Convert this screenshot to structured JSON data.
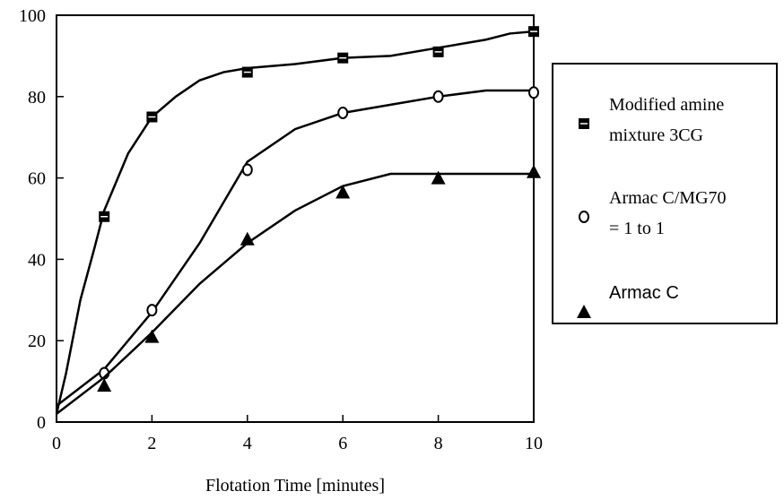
{
  "chart_data": {
    "type": "line",
    "x_label": "Flotation Time [minutes]",
    "xlim": [
      0,
      10
    ],
    "xticks": [
      0,
      2,
      4,
      6,
      8,
      10
    ],
    "ylim": [
      0,
      100
    ],
    "yticks": [
      0,
      20,
      40,
      60,
      80,
      100
    ],
    "series": [
      {
        "name": "Modified amine mixture 3CG",
        "color": "#000000",
        "marker": "square",
        "x": [
          1,
          2,
          4,
          6,
          8,
          10
        ],
        "values": [
          50.5,
          75,
          86,
          89.5,
          91,
          96
        ],
        "fit": {
          "x": [
            0,
            0.2,
            0.5,
            0.8,
            1,
            1.5,
            2,
            2.5,
            3,
            3.5,
            4,
            5,
            6,
            7,
            8,
            9,
            9.5,
            10
          ],
          "values": [
            2,
            12,
            30,
            43,
            52,
            66,
            75,
            80,
            84,
            86,
            87,
            88,
            89.5,
            90,
            92,
            94,
            95.5,
            96
          ]
        }
      },
      {
        "name": "Armac C/MG70 = 1 to 1",
        "color": "#000000",
        "marker": "circle",
        "x": [
          1,
          2,
          4,
          6,
          8,
          10
        ],
        "values": [
          12,
          27.5,
          62,
          76,
          80,
          81
        ],
        "fit": {
          "x": [
            0,
            1,
            2,
            3,
            4,
            5,
            6,
            7,
            8,
            9,
            10
          ],
          "values": [
            4,
            13,
            27,
            44,
            64,
            72,
            76,
            78,
            80,
            81.5,
            81.5
          ]
        }
      },
      {
        "name": "Armac C",
        "color": "#000000",
        "marker": "triangle",
        "x": [
          1,
          2,
          4,
          6,
          8,
          10
        ],
        "values": [
          9,
          21,
          45,
          56.5,
          60,
          61.5
        ],
        "fit": {
          "x": [
            0,
            1,
            2,
            3,
            4,
            5,
            6,
            7,
            8,
            9,
            10
          ],
          "values": [
            2,
            11,
            22,
            34,
            44,
            52,
            58,
            61,
            61,
            61,
            61
          ]
        }
      }
    ]
  }
}
